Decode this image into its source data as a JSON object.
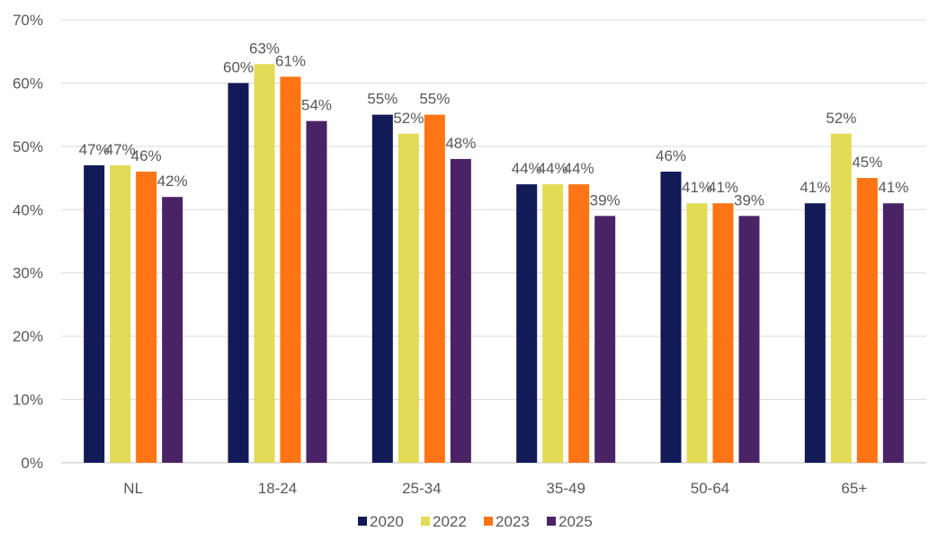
{
  "chart_data": {
    "type": "bar",
    "categories": [
      "NL",
      "18-24",
      "25-34",
      "35-49",
      "50-64",
      "65+"
    ],
    "series": [
      {
        "name": "2020",
        "color": "#121A57",
        "values": [
          47,
          60,
          55,
          44,
          46,
          41
        ]
      },
      {
        "name": "2022",
        "color": "#E2DB55",
        "values": [
          47,
          63,
          52,
          44,
          41,
          52
        ]
      },
      {
        "name": "2023",
        "color": "#FF7415",
        "values": [
          46,
          61,
          55,
          44,
          41,
          45
        ]
      },
      {
        "name": "2025",
        "color": "#4A2366",
        "values": [
          42,
          54,
          48,
          39,
          39,
          41
        ]
      }
    ],
    "ylim": [
      0,
      70
    ],
    "yticks": [
      "0%",
      "10%",
      "20%",
      "30%",
      "40%",
      "50%",
      "60%",
      "70%"
    ],
    "value_suffix": "%",
    "grid": true,
    "legend_position": "bottom"
  }
}
